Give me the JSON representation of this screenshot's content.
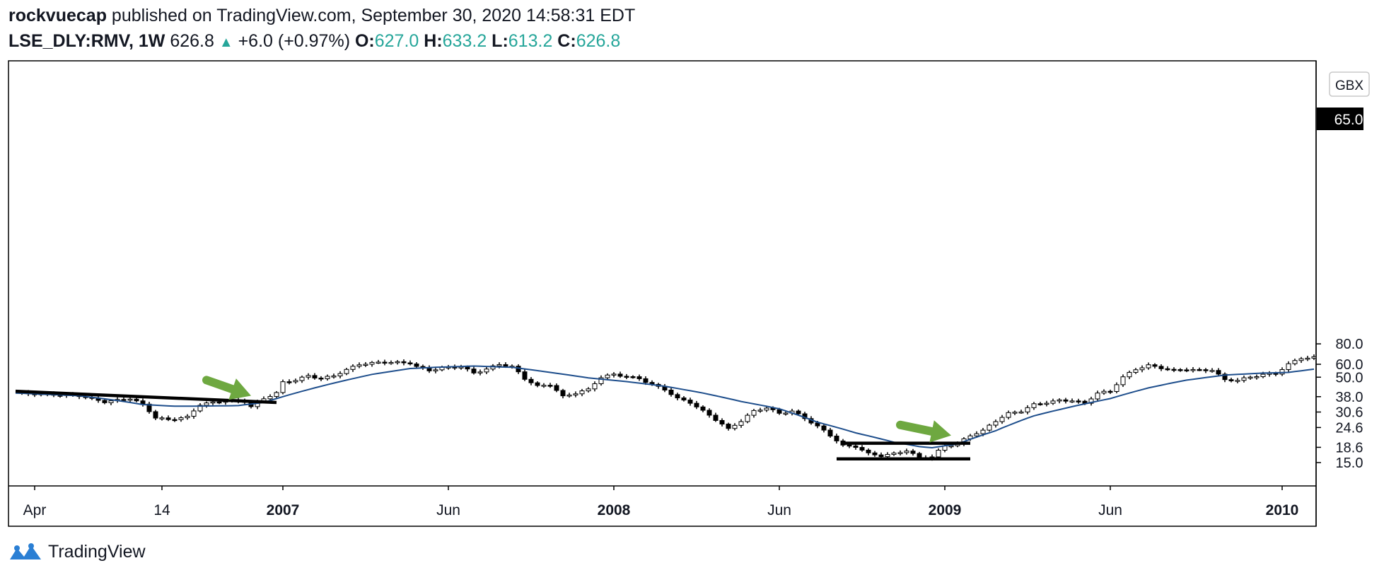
{
  "header": {
    "author": "rockvuecap",
    "published_text": "published on TradingView.com, September 30, 2020 14:58:31 EDT",
    "symbol": "LSE_DLY:RMV, 1W",
    "last": "626.8",
    "change_arrow": "▲",
    "change": "+6.0 (+0.97%)",
    "o_label": "O:",
    "o_value": "627.0",
    "h_label": "H:",
    "h_value": "633.2",
    "l_label": "L:",
    "l_value": "613.2",
    "c_label": "C:",
    "c_value": "626.8"
  },
  "footer": {
    "brand": "TradingView",
    "logo_icon": "tradingview-logo-icon"
  },
  "chart_data": {
    "type": "candlestick",
    "currency": "GBX",
    "y_scale": "log",
    "y_ticks": [
      "80.0",
      "60.0",
      "50.0",
      "38.0",
      "30.6",
      "24.6",
      "18.6",
      "15.0"
    ],
    "last_price_label": "65.0",
    "x_ticks": [
      {
        "label": "Apr",
        "bold": false
      },
      {
        "label": "14",
        "bold": false
      },
      {
        "label": "2007",
        "bold": true
      },
      {
        "label": "Jun",
        "bold": false
      },
      {
        "label": "2008",
        "bold": true
      },
      {
        "label": "Jun",
        "bold": false
      },
      {
        "label": "2009",
        "bold": true
      },
      {
        "label": "Jun",
        "bold": false
      },
      {
        "label": "2010",
        "bold": true
      }
    ],
    "grid": false,
    "colors": {
      "up": "#ffffff",
      "down": "#000000",
      "ma": "#1e4e8c",
      "arrow": "#6ea840",
      "accent": "#26a69a"
    },
    "price_path": [
      [
        0,
        40.0
      ],
      [
        10,
        38.5
      ],
      [
        14,
        35.3
      ],
      [
        18,
        37.0
      ],
      [
        20,
        34.0
      ],
      [
        22,
        28.2
      ],
      [
        24,
        27.5
      ],
      [
        27,
        28.5
      ],
      [
        29,
        34.0
      ],
      [
        33,
        36.0
      ],
      [
        36,
        35.5
      ],
      [
        37,
        33.0
      ],
      [
        39,
        37.0
      ],
      [
        41,
        40.0
      ],
      [
        42,
        46.5
      ],
      [
        44,
        48.0
      ],
      [
        46,
        51.0
      ],
      [
        48,
        49.0
      ],
      [
        50,
        51.0
      ],
      [
        52,
        55.5
      ],
      [
        54,
        60.0
      ],
      [
        58,
        62.0
      ],
      [
        62,
        61.0
      ],
      [
        63,
        58.0
      ],
      [
        65,
        55.0
      ],
      [
        67,
        57.0
      ],
      [
        70,
        58.0
      ],
      [
        72,
        53.0
      ],
      [
        74,
        56.0
      ],
      [
        76,
        60.0
      ],
      [
        78,
        58.0
      ],
      [
        80,
        49.0
      ],
      [
        82,
        44.0
      ],
      [
        84,
        45.0
      ],
      [
        86,
        38.0
      ],
      [
        88,
        40.0
      ],
      [
        90,
        42.0
      ],
      [
        92,
        50.0
      ],
      [
        94,
        52.0
      ],
      [
        98,
        49.0
      ],
      [
        100,
        45.0
      ],
      [
        102,
        42.0
      ],
      [
        104,
        37.0
      ],
      [
        106,
        35.0
      ],
      [
        108,
        31.0
      ],
      [
        110,
        27.5
      ],
      [
        112,
        24.0
      ],
      [
        114,
        27.0
      ],
      [
        116,
        31.0
      ],
      [
        118,
        32.5
      ],
      [
        120,
        30.0
      ],
      [
        122,
        31.0
      ],
      [
        124,
        28.0
      ],
      [
        126,
        25.0
      ],
      [
        128,
        22.0
      ],
      [
        130,
        19.0
      ],
      [
        132,
        18.8
      ],
      [
        134,
        17.0
      ],
      [
        136,
        16.5
      ],
      [
        138,
        17.0
      ],
      [
        140,
        17.8
      ],
      [
        142,
        16.0
      ],
      [
        144,
        16.3
      ],
      [
        146,
        19.0
      ],
      [
        148,
        19.5
      ],
      [
        150,
        22.0
      ],
      [
        152,
        23.5
      ],
      [
        154,
        27.0
      ],
      [
        156,
        30.0
      ],
      [
        158,
        31.0
      ],
      [
        160,
        34.0
      ],
      [
        162,
        35.0
      ],
      [
        164,
        36.0
      ],
      [
        166,
        36.0
      ],
      [
        168,
        34.5
      ],
      [
        170,
        40.0
      ],
      [
        172,
        41.0
      ],
      [
        174,
        50.0
      ],
      [
        176,
        56.0
      ],
      [
        178,
        59.0
      ],
      [
        180,
        57.0
      ],
      [
        182,
        55.0
      ],
      [
        184,
        56.0
      ],
      [
        186,
        55.0
      ],
      [
        188,
        55.5
      ],
      [
        190,
        48.0
      ],
      [
        192,
        48.0
      ],
      [
        194,
        50.0
      ],
      [
        196,
        52.0
      ],
      [
        198,
        52.5
      ],
      [
        200,
        60.0
      ],
      [
        202,
        65.5
      ],
      [
        204,
        66.0
      ]
    ],
    "moving_average_path": [
      [
        0,
        40.0
      ],
      [
        10,
        38.5
      ],
      [
        16,
        36.0
      ],
      [
        20,
        34.0
      ],
      [
        25,
        33.2
      ],
      [
        30,
        33.3
      ],
      [
        35,
        33.5
      ],
      [
        39,
        35.0
      ],
      [
        44,
        40.0
      ],
      [
        50,
        46.0
      ],
      [
        56,
        52.0
      ],
      [
        62,
        56.5
      ],
      [
        66,
        57.5
      ],
      [
        72,
        58.5
      ],
      [
        78,
        57.5
      ],
      [
        84,
        53.5
      ],
      [
        90,
        49.5
      ],
      [
        96,
        47.0
      ],
      [
        102,
        44.0
      ],
      [
        108,
        40.0
      ],
      [
        114,
        35.5
      ],
      [
        120,
        32.0
      ],
      [
        126,
        26.5
      ],
      [
        132,
        22.8
      ],
      [
        138,
        20.0
      ],
      [
        142,
        18.8
      ],
      [
        144,
        18.5
      ],
      [
        148,
        19.5
      ],
      [
        154,
        23.5
      ],
      [
        160,
        29.0
      ],
      [
        166,
        33.0
      ],
      [
        172,
        37.0
      ],
      [
        178,
        43.0
      ],
      [
        184,
        48.0
      ],
      [
        190,
        51.5
      ],
      [
        196,
        53.0
      ],
      [
        200,
        53.5
      ],
      [
        204,
        56.0
      ]
    ],
    "trendlines": [
      {
        "from": [
          0,
          41.0
        ],
        "to": [
          41,
          35.0
        ]
      },
      {
        "from": [
          130,
          19.7
        ],
        "to": [
          150,
          19.7
        ]
      },
      {
        "from": [
          129,
          15.8
        ],
        "to": [
          150,
          15.8
        ]
      }
    ],
    "arrows": [
      {
        "from": [
          30,
          48.0
        ],
        "to": [
          37,
          38.5
        ]
      },
      {
        "from": [
          139,
          25.5
        ],
        "to": [
          147,
          22.0
        ]
      }
    ]
  }
}
